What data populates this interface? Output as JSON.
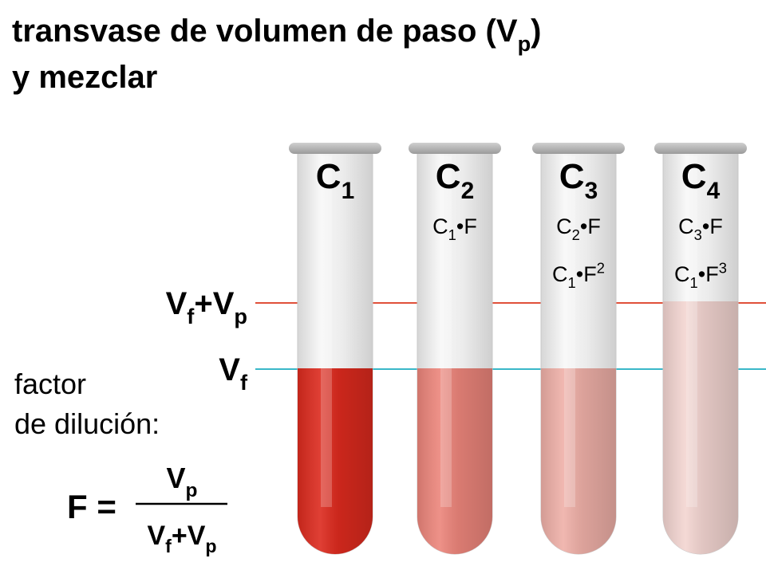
{
  "title": {
    "line1": [
      {
        "t": "transvase de volumen de paso (V"
      },
      {
        "sub": "p"
      },
      {
        "t": ")"
      }
    ],
    "line2": [
      {
        "t": "y mezclar"
      }
    ]
  },
  "levels": {
    "upper": [
      {
        "t": "V"
      },
      {
        "sub": "f"
      },
      {
        "t": "+V"
      },
      {
        "sub": "p"
      }
    ],
    "lower": [
      {
        "t": "V"
      },
      {
        "sub": "f"
      }
    ]
  },
  "factor": {
    "line1": "factor",
    "line2": "de dilución:",
    "lhs": "F =",
    "numerator": [
      {
        "t": "V"
      },
      {
        "sub": "p"
      }
    ],
    "denominator": [
      {
        "t": "V"
      },
      {
        "sub": "f"
      },
      {
        "t": "+V"
      },
      {
        "sub": "p"
      }
    ]
  },
  "tubes": [
    {
      "color": "#dc2a1e",
      "label": [
        {
          "t": "C"
        },
        {
          "sub": "1"
        }
      ],
      "formulas": []
    },
    {
      "color": "#ec857b",
      "label": [
        {
          "t": "C"
        },
        {
          "sub": "2"
        }
      ],
      "formulas": [
        [
          {
            "t": "C"
          },
          {
            "sub": "1"
          },
          {
            "t": "•F"
          }
        ]
      ]
    },
    {
      "color": "#efb0a8",
      "label": [
        {
          "t": "C"
        },
        {
          "sub": "3"
        }
      ],
      "formulas": [
        [
          {
            "t": "C"
          },
          {
            "sub": "2"
          },
          {
            "t": "•F"
          }
        ],
        [
          {
            "t": "C"
          },
          {
            "sub": "1"
          },
          {
            "t": "•F"
          },
          {
            "sup": "2"
          }
        ]
      ]
    },
    {
      "color": "#f3d5d1",
      "label": [
        {
          "t": "C"
        },
        {
          "sub": "4"
        }
      ],
      "formulas": [
        [
          {
            "t": "C"
          },
          {
            "sub": "3"
          },
          {
            "t": "•F"
          }
        ],
        [
          {
            "t": "C"
          },
          {
            "sub": "1"
          },
          {
            "t": "•F"
          },
          {
            "sup": "3"
          }
        ]
      ]
    }
  ]
}
